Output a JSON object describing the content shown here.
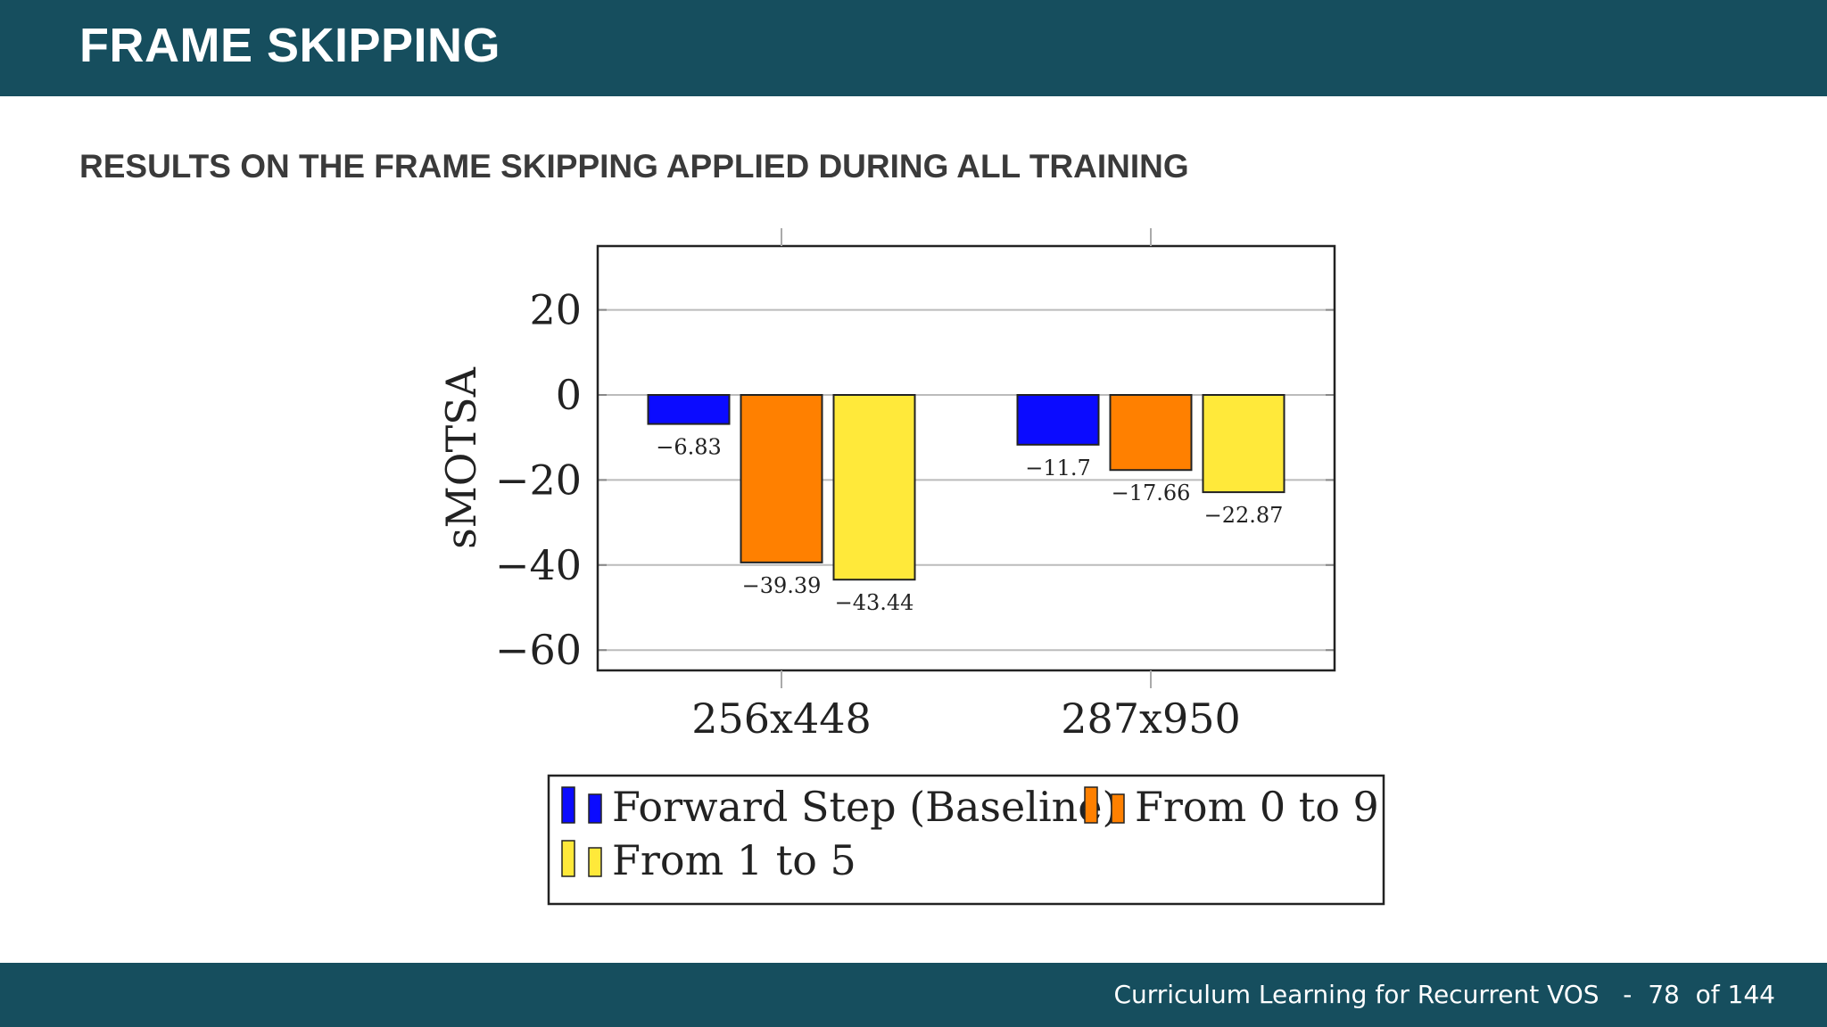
{
  "slide": {
    "title": "FRAME SKIPPING",
    "subtitle": "RESULTS ON THE FRAME SKIPPING APPLIED DURING ALL TRAINING",
    "footer_text": "Curriculum Learning for Recurrent VOS",
    "footer_sep": "-",
    "page_number": "78",
    "page_of": "of 144",
    "header_color": "#164e5e"
  },
  "chart_data": {
    "type": "bar",
    "ylabel": "sMOTSA",
    "xlabel": "",
    "ylim": [
      -65,
      35
    ],
    "yticks": [
      20,
      0,
      -20,
      -40,
      -60
    ],
    "ytick_labels": [
      "20",
      "0",
      "−20",
      "−40",
      "−60"
    ],
    "grid": true,
    "legend_position": "bottom",
    "categories": [
      "256x448",
      "287x950"
    ],
    "series": [
      {
        "name": "Forward Step (Baseline)",
        "color": "#0b0bff",
        "values": [
          -6.83,
          -11.7
        ],
        "labels": [
          "−6.83",
          "−11.7"
        ]
      },
      {
        "name": "From 0 to 9",
        "color": "#ff8000",
        "values": [
          -39.39,
          -17.66
        ],
        "labels": [
          "−39.39",
          "−17.66"
        ]
      },
      {
        "name": "From 1 to 5",
        "color": "#ffe93a",
        "values": [
          -43.44,
          -22.87
        ],
        "labels": [
          "−43.44",
          "−22.87"
        ]
      }
    ]
  }
}
